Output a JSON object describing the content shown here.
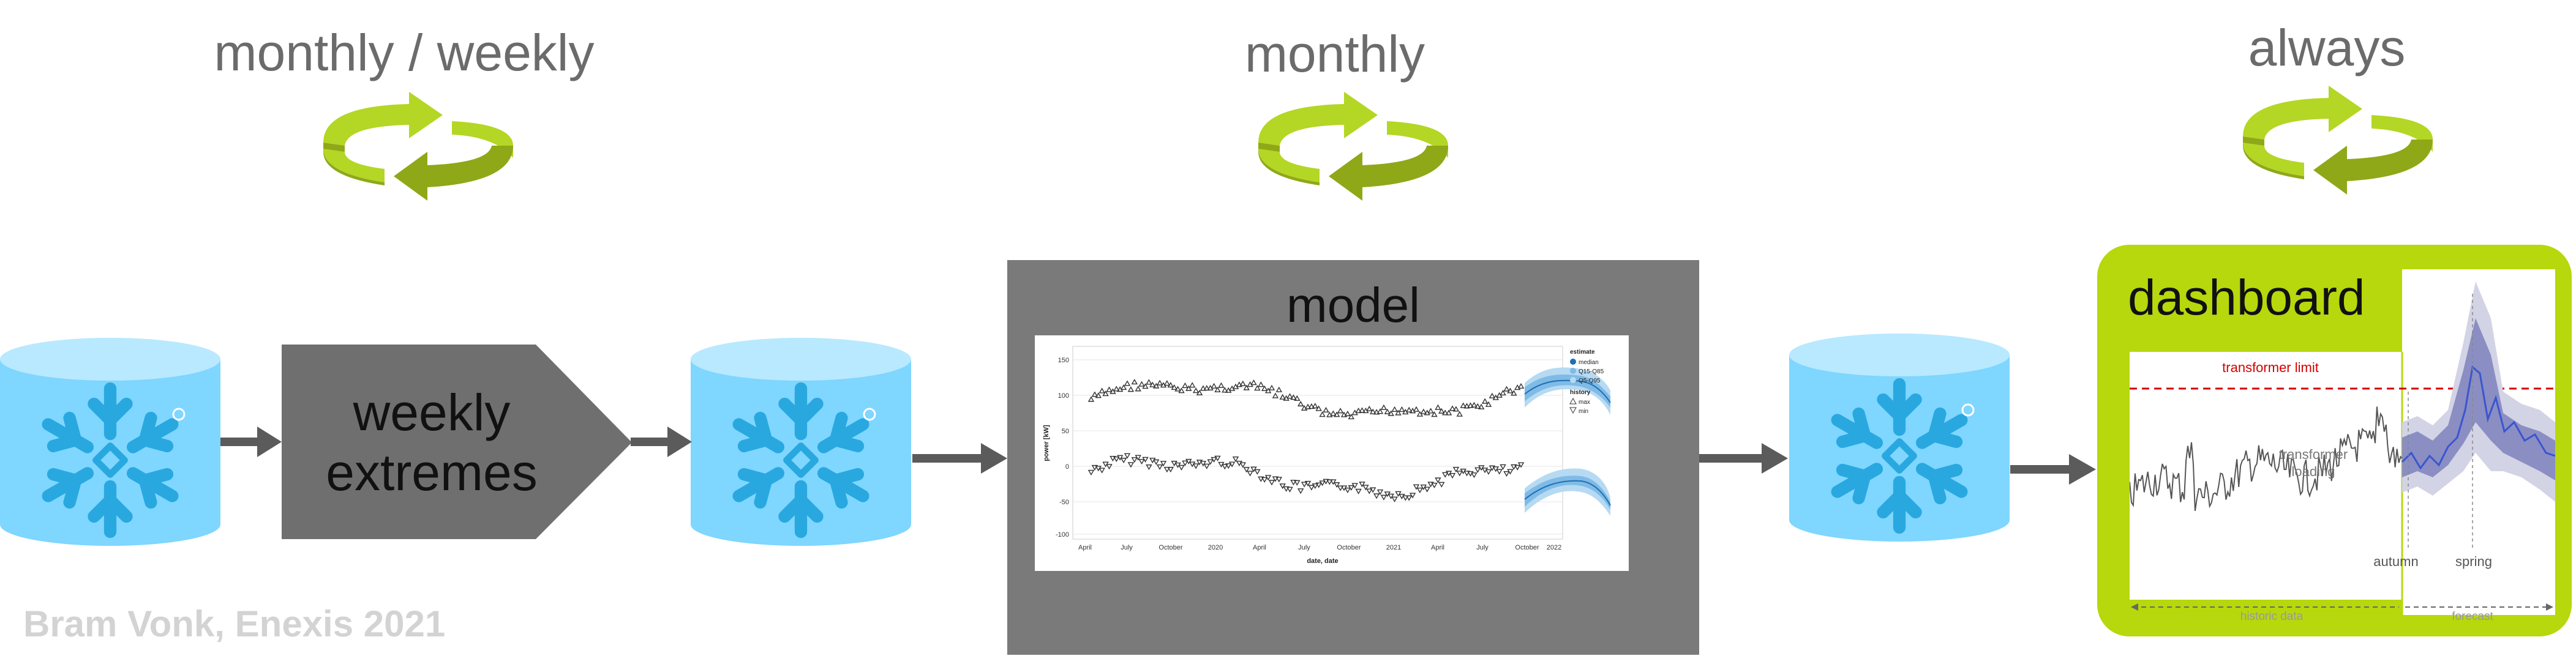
{
  "cycles": [
    {
      "label": "monthly / weekly"
    },
    {
      "label": "monthly"
    },
    {
      "label": "always"
    }
  ],
  "process": {
    "weekly_extremes_line1": "weekly",
    "weekly_extremes_line2": "extremes",
    "model_title": "model",
    "dashboard_title": "dashboard"
  },
  "model_chart": {
    "y_axis_label": "power [kW]",
    "x_axis_label": "date, date",
    "y_ticks": [
      "150",
      "100",
      "50",
      "0",
      "-50",
      "-100"
    ],
    "x_ticks": [
      "April",
      "July",
      "October",
      "2020",
      "April",
      "July",
      "October",
      "2021",
      "April",
      "July",
      "October",
      "2022"
    ],
    "legend_title_estimate": "estimate",
    "legend_estimate": [
      "median",
      "Q15-Q85",
      "Q5-Q95"
    ],
    "legend_title_history": "history",
    "legend_history": [
      "max",
      "min"
    ]
  },
  "dashboard_chart": {
    "limit_label": "transformer limit",
    "loading_label_line1": "transformer",
    "loading_label_line2": "loading",
    "autumn_label": "autumn",
    "spring_label": "spring",
    "historic_label": "historic data",
    "forecast_label": "forecast"
  },
  "colors": {
    "cycle_green_light": "#b4d625",
    "cycle_green_dark": "#8fa817",
    "cylinder": "#7fd6ff",
    "snowflake": "#29a8e0",
    "dashboard_frame": "#b6d80c",
    "model_panel": "#7a7a7a",
    "arrow": "#5b5b5b",
    "forecast_blue": "#3a55d1",
    "limit_red": "#d40000"
  },
  "credit": "Bram Vonk, Enexis 2021"
}
